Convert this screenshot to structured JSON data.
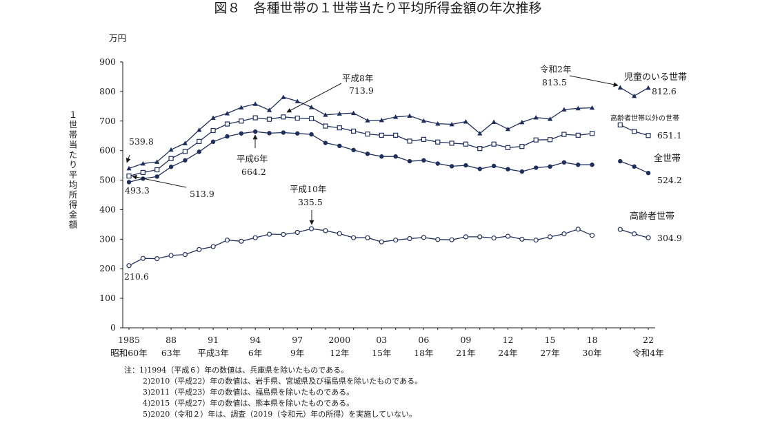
{
  "page": {
    "title": "図８　各種世帯の１世帯当たり平均所得金額の年次推移",
    "notes": [
      "注：1)1994（平成６）年の数値は、兵庫県を除いたものである。",
      "2)2010（平成22）年の数値は、岩手県、宮城県及び福島県を除いたものである。",
      "3)2011（平成23）年の数値は、福島県を除いたものである。",
      "4)2015（平成27）年の数値は、熊本県を除いたものである。",
      "5)2020（令和２）年は、調査（2019（令和元）年の所得）を実施していない。"
    ]
  },
  "chart_data": {
    "type": "line",
    "unit_label": "万円",
    "ylabel": "１世帯当たり平均所得金額",
    "ylim": [
      0,
      900
    ],
    "yticks": [
      0,
      100,
      200,
      300,
      400,
      500,
      600,
      700,
      800,
      900
    ],
    "xlim": [
      1985,
      2022
    ],
    "xticks": [
      {
        "x": 1985,
        "top": "1985",
        "bottom": "昭和60年"
      },
      {
        "x": 1988,
        "top": "88",
        "bottom": "63年"
      },
      {
        "x": 1991,
        "top": "91",
        "bottom": "平成3年"
      },
      {
        "x": 1994,
        "top": "94",
        "bottom": "6年"
      },
      {
        "x": 1997,
        "top": "97",
        "bottom": "9年"
      },
      {
        "x": 2000,
        "top": "2000",
        "bottom": "12年"
      },
      {
        "x": 2003,
        "top": "03",
        "bottom": "15年"
      },
      {
        "x": 2006,
        "top": "06",
        "bottom": "18年"
      },
      {
        "x": 2009,
        "top": "09",
        "bottom": "21年"
      },
      {
        "x": 2012,
        "top": "12",
        "bottom": "24年"
      },
      {
        "x": 2015,
        "top": "15",
        "bottom": "27年"
      },
      {
        "x": 2018,
        "top": "18",
        "bottom": "30年"
      },
      {
        "x": 2022,
        "top": "22",
        "bottom": "令和4年"
      }
    ],
    "series": [
      {
        "name": "児童のいる世帯",
        "marker": "triangle",
        "color": "#1f2f5c",
        "segments": [
          [
            [
              1985,
              539.8
            ],
            [
              1986,
              556
            ],
            [
              1987,
              562
            ],
            [
              1988,
              603
            ],
            [
              1989,
              625
            ],
            [
              1990,
              670
            ],
            [
              1991,
              711
            ],
            [
              1992,
              726
            ],
            [
              1993,
              746
            ],
            [
              1994,
              758
            ],
            [
              1995,
              737
            ],
            [
              1996,
              781
            ],
            [
              1997,
              767
            ],
            [
              1998,
              747
            ],
            [
              1999,
              721
            ],
            [
              2000,
              725
            ],
            [
              2001,
              727
            ],
            [
              2002,
              702
            ],
            [
              2003,
              703
            ],
            [
              2004,
              714
            ],
            [
              2005,
              718
            ],
            [
              2006,
              701
            ],
            [
              2007,
              691
            ],
            [
              2008,
              689
            ],
            [
              2009,
              698
            ],
            [
              2010,
              658
            ],
            [
              2011,
              697
            ],
            [
              2012,
              673
            ],
            [
              2013,
              696
            ],
            [
              2014,
              712
            ],
            [
              2015,
              707
            ],
            [
              2016,
              739
            ],
            [
              2017,
              743
            ],
            [
              2018,
              745
            ]
          ],
          [
            [
              2020,
              813.5
            ],
            [
              2021,
              785
            ],
            [
              2022,
              812.6
            ]
          ]
        ]
      },
      {
        "name": "高齢者世帯以外の世帯",
        "marker": "square",
        "color": "#1f2f5c",
        "segments": [
          [
            [
              1985,
              513.9
            ],
            [
              1986,
              526
            ],
            [
              1987,
              535
            ],
            [
              1988,
              573
            ],
            [
              1989,
              597
            ],
            [
              1990,
              631
            ],
            [
              1991,
              668
            ],
            [
              1992,
              690
            ],
            [
              1993,
              700
            ],
            [
              1994,
              711
            ],
            [
              1995,
              706
            ],
            [
              1996,
              713.9
            ],
            [
              1997,
              710
            ],
            [
              1998,
              708
            ],
            [
              1999,
              683
            ],
            [
              2000,
              677
            ],
            [
              2001,
              666
            ],
            [
              2002,
              656
            ],
            [
              2003,
              652
            ],
            [
              2004,
              652
            ],
            [
              2005,
              632
            ],
            [
              2006,
              638
            ],
            [
              2007,
              629
            ],
            [
              2008,
              625
            ],
            [
              2009,
              622
            ],
            [
              2010,
              607
            ],
            [
              2011,
              622
            ],
            [
              2012,
              610
            ],
            [
              2013,
              614
            ],
            [
              2014,
              636
            ],
            [
              2015,
              637
            ],
            [
              2016,
              655
            ],
            [
              2017,
              652
            ],
            [
              2018,
              658
            ]
          ],
          [
            [
              2020,
              687
            ],
            [
              2021,
              665
            ],
            [
              2022,
              651.1
            ]
          ]
        ]
      },
      {
        "name": "全世帯",
        "marker": "filled-circle",
        "color": "#1f2f5c",
        "segments": [
          [
            [
              1985,
              493.3
            ],
            [
              1986,
              505
            ],
            [
              1987,
              512
            ],
            [
              1988,
              545
            ],
            [
              1989,
              567
            ],
            [
              1990,
              596
            ],
            [
              1991,
              630
            ],
            [
              1992,
              648
            ],
            [
              1993,
              658
            ],
            [
              1994,
              664.2
            ],
            [
              1995,
              659
            ],
            [
              1996,
              661
            ],
            [
              1997,
              658
            ],
            [
              1998,
              655
            ],
            [
              1999,
              626
            ],
            [
              2000,
              616
            ],
            [
              2001,
              602
            ],
            [
              2002,
              589
            ],
            [
              2003,
              580
            ],
            [
              2004,
              580
            ],
            [
              2005,
              564
            ],
            [
              2006,
              567
            ],
            [
              2007,
              556
            ],
            [
              2008,
              547
            ],
            [
              2009,
              550
            ],
            [
              2010,
              538
            ],
            [
              2011,
              548
            ],
            [
              2012,
              537
            ],
            [
              2013,
              529
            ],
            [
              2014,
              542
            ],
            [
              2015,
              546
            ],
            [
              2016,
              560
            ],
            [
              2017,
              552
            ],
            [
              2018,
              552
            ]
          ],
          [
            [
              2020,
              564
            ],
            [
              2021,
              546
            ],
            [
              2022,
              524.2
            ]
          ]
        ]
      },
      {
        "name": "高齢者世帯",
        "marker": "open-circle",
        "color": "#1f2f5c",
        "segments": [
          [
            [
              1985,
              210.6
            ],
            [
              1986,
              235
            ],
            [
              1987,
              234
            ],
            [
              1988,
              245
            ],
            [
              1989,
              248
            ],
            [
              1990,
              265
            ],
            [
              1991,
              275
            ],
            [
              1992,
              297
            ],
            [
              1993,
              293
            ],
            [
              1994,
              305
            ],
            [
              1995,
              317
            ],
            [
              1996,
              316
            ],
            [
              1997,
              323
            ],
            [
              1998,
              335.5
            ],
            [
              1999,
              329
            ],
            [
              2000,
              319
            ],
            [
              2001,
              305
            ],
            [
              2002,
              305
            ],
            [
              2003,
              291
            ],
            [
              2004,
              297
            ],
            [
              2005,
              302
            ],
            [
              2006,
              306
            ],
            [
              2007,
              299
            ],
            [
              2008,
              298
            ],
            [
              2009,
              308
            ],
            [
              2010,
              308
            ],
            [
              2011,
              304
            ],
            [
              2012,
              310
            ],
            [
              2013,
              300
            ],
            [
              2014,
              297
            ],
            [
              2015,
              308
            ],
            [
              2016,
              318
            ],
            [
              2017,
              334
            ],
            [
              2018,
              313
            ]
          ],
          [
            [
              2020,
              333
            ],
            [
              2021,
              318
            ],
            [
              2022,
              304.9
            ]
          ]
        ]
      }
    ],
    "annotations": {
      "a1985_child": "539.8",
      "a1985_all": "493.3",
      "a1985_nonelder": "513.9",
      "a1985_elder": "210.6",
      "h6_label": "平成6年",
      "h6_value": "664.2",
      "h8_label": "平成8年",
      "h8_value": "713.9",
      "h10_label": "平成10年",
      "h10_value": "335.5",
      "r2_label": "令和2年",
      "r2_value": "813.5",
      "end_child_name": "児童のいる世帯",
      "end_child_value": "812.6",
      "end_nonelder_name": "高齢者世帯以外の世帯",
      "end_nonelder_value": "651.1",
      "end_all_name": "全世帯",
      "end_all_value": "524.2",
      "end_elder_name": "高齢者世帯",
      "end_elder_value": "304.9"
    }
  }
}
